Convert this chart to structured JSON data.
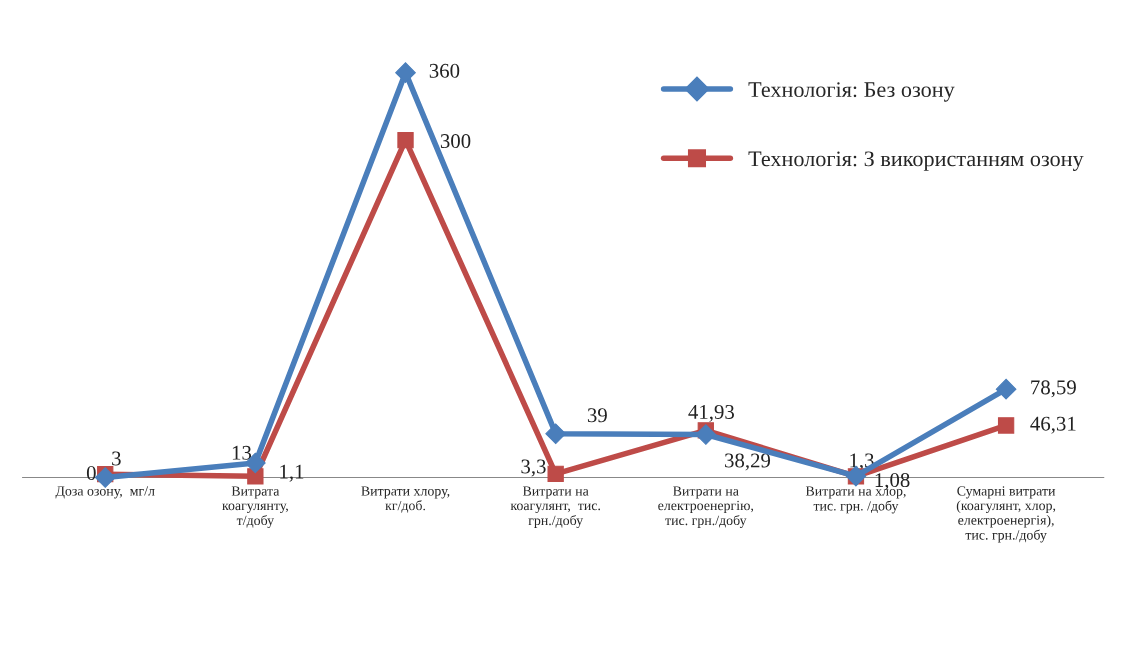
{
  "chart_data": {
    "type": "line",
    "categories": [
      "Доза озону,  мг/л",
      "Витрата\nкоагулянту,\nт/добу",
      "Витрати хлору,\nкг/доб.",
      "Витрати на\nкоагулянт,  тис.\nгрн./добу",
      "Витрати на\nелектроенергію,\nтис. грн./добу",
      "Витрати на хлор,\nтис. грн. /добу",
      "Сумарні витрати\n(коагулянт, хлор,\nелектроенергія),\nтис. грн./добу"
    ],
    "series": [
      {
        "name": "Технологія: Без озону",
        "color": "#4a7ebb",
        "marker": "diamond",
        "values": [
          0,
          13,
          360,
          39,
          38.29,
          1.3,
          78.59
        ],
        "value_labels": [
          "0",
          "13",
          "360",
          "39",
          "38,29",
          "1,3",
          "78,59"
        ]
      },
      {
        "name": "Технологія: З використанням озону",
        "color": "#be4b48",
        "marker": "square",
        "values": [
          3,
          1.1,
          300,
          3.3,
          41.93,
          1.08,
          46.31
        ],
        "value_labels": [
          "3",
          "1,1",
          "300",
          "3,3",
          "41,93",
          "1,08",
          "46,31"
        ]
      }
    ],
    "legend": "top right",
    "grid": false
  }
}
